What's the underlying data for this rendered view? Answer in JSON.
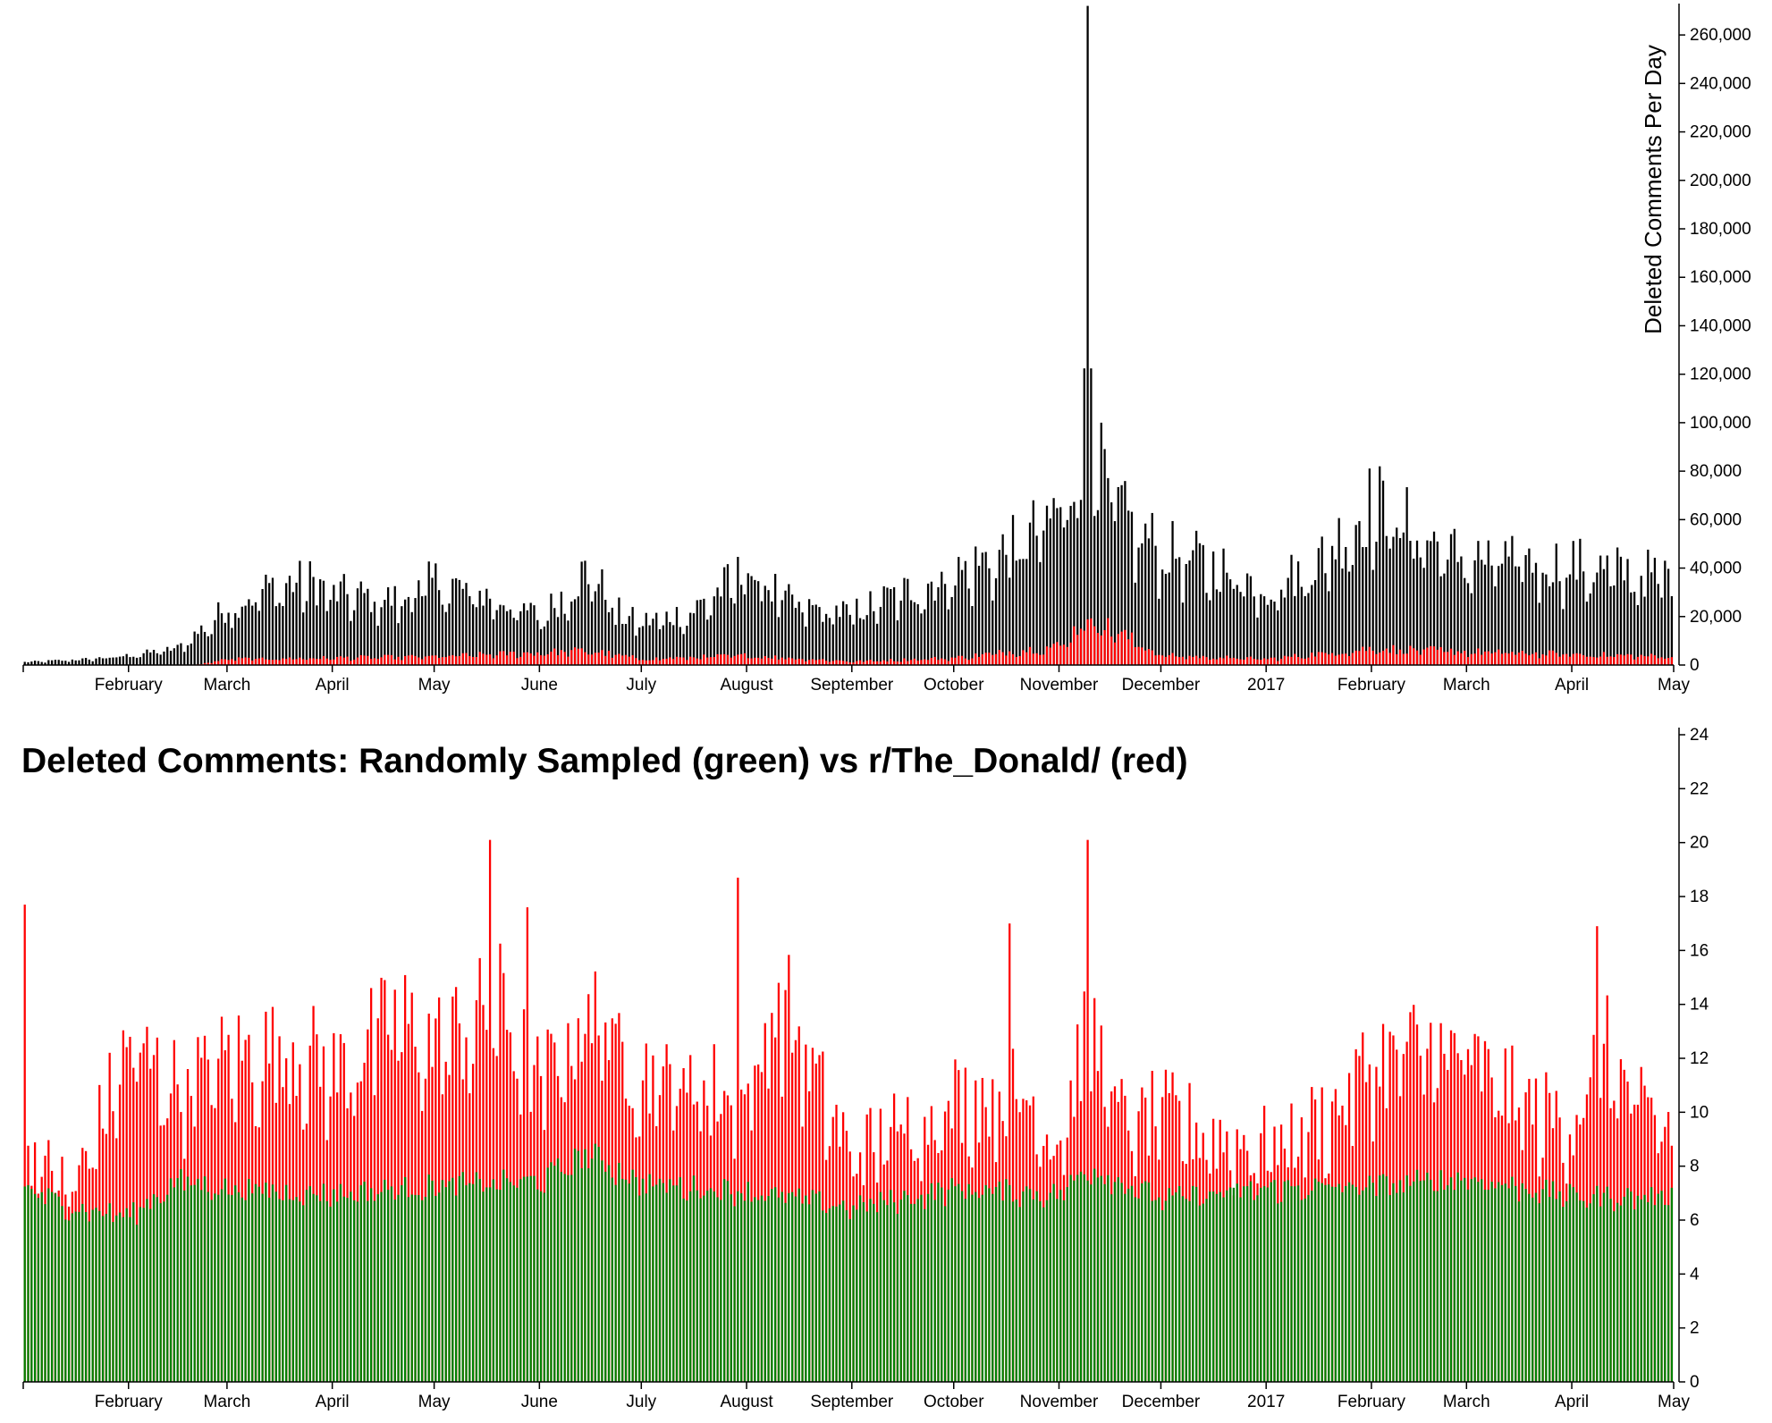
{
  "chart_data": [
    {
      "type": "bar",
      "title": "",
      "ylabel": "Deleted Comments Per Day",
      "ylim": [
        0,
        270000
      ],
      "y_ticks": [
        "0",
        "20,000",
        "40,000",
        "60,000",
        "80,000",
        "100,000",
        "120,000",
        "140,000",
        "160,000",
        "180,000",
        "200,000",
        "220,000",
        "240,000",
        "260,000"
      ],
      "y_tick_values": [
        0,
        20000,
        40000,
        60000,
        80000,
        100000,
        120000,
        140000,
        160000,
        180000,
        200000,
        220000,
        240000,
        260000
      ],
      "x_start": "2016-01-01",
      "x_end": "2017-05-01",
      "x_ticks": [
        "February",
        "March",
        "April",
        "May",
        "June",
        "July",
        "August",
        "September",
        "October",
        "November",
        "December",
        "2017",
        "February",
        "March",
        "April",
        "May"
      ],
      "x_tick_dates": [
        "2016-02-01",
        "2016-03-01",
        "2016-04-01",
        "2016-05-01",
        "2016-06-01",
        "2016-07-01",
        "2016-08-01",
        "2016-09-01",
        "2016-10-01",
        "2016-11-01",
        "2016-12-01",
        "2017-01-01",
        "2017-02-01",
        "2017-03-01",
        "2017-04-01",
        "2017-05-01"
      ],
      "series_note": "",
      "series": [
        {
          "color": "#000000",
          "monthly_typical_values": {
            "2016-01-01": 1200,
            "2016-01-20": 2500,
            "2016-02-01": 4000,
            "2016-02-15": 7000,
            "2016-02-25": 18000,
            "2016-03-01": 25000,
            "2016-03-15": 33000,
            "2016-03-25": 35000,
            "2016-04-01": 30000,
            "2016-04-20": 27000,
            "2016-05-01": 35000,
            "2016-05-20": 27000,
            "2016-06-01": 20000,
            "2016-06-15": 40000,
            "2016-06-25": 20000,
            "2016-07-01": 18000,
            "2016-07-15": 22000,
            "2016-08-01": 40000,
            "2016-08-15": 24000,
            "2016-09-01": 22000,
            "2016-09-15": 30000,
            "2016-10-01": 38000,
            "2016-10-20": 50000,
            "2016-11-01": 65000,
            "2016-11-09": 90000,
            "2016-11-20": 60000,
            "2016-12-01": 48000,
            "2016-12-20": 40000,
            "2017-01-01": 32000,
            "2017-01-15": 42000,
            "2017-02-01": 68000,
            "2017-02-20": 50000,
            "2017-03-01": 44000,
            "2017-03-20": 43000,
            "2017-04-01": 42000,
            "2017-04-20": 38000,
            "2017-05-01": 38000
          },
          "peak_date": "2016-11-09",
          "peak_value": 272000
        },
        {
          "color": "#ff0000",
          "monthly_typical_values": {
            "2016-01-01": 0,
            "2016-02-20": 0,
            "2016-03-01": 2500,
            "2016-05-01": 3500,
            "2016-06-15": 6000,
            "2016-07-01": 2500,
            "2016-08-01": 4000,
            "2016-09-01": 1500,
            "2016-10-01": 3000,
            "2016-11-01": 8000,
            "2016-11-09": 20000,
            "2016-12-01": 4000,
            "2017-01-01": 2500,
            "2017-02-01": 7000,
            "2017-03-01": 5500,
            "2017-04-01": 4500,
            "2017-05-01": 3500
          }
        }
      ]
    },
    {
      "type": "bar",
      "title": "Deleted Comments: Randomly Sampled (green) vs r/The_Donald/ (red)",
      "ylabel": "",
      "ylim": [
        0,
        24
      ],
      "y_ticks": [
        "0",
        "2",
        "4",
        "6",
        "8",
        "10",
        "12",
        "14",
        "16",
        "18",
        "20",
        "22",
        "24"
      ],
      "y_tick_values": [
        0,
        2,
        4,
        6,
        8,
        10,
        12,
        14,
        16,
        18,
        20,
        22,
        24
      ],
      "x_start": "2016-01-01",
      "x_end": "2017-05-01",
      "x_ticks": [
        "February",
        "March",
        "April",
        "May",
        "June",
        "July",
        "August",
        "September",
        "October",
        "November",
        "December",
        "2017",
        "February",
        "March",
        "April",
        "May"
      ],
      "x_tick_dates": [
        "2016-02-01",
        "2016-03-01",
        "2016-04-01",
        "2016-05-01",
        "2016-06-01",
        "2016-07-01",
        "2016-08-01",
        "2016-09-01",
        "2016-10-01",
        "2016-11-01",
        "2016-12-01",
        "2017-01-01",
        "2017-02-01",
        "2017-03-01",
        "2017-04-01",
        "2017-05-01"
      ],
      "series": [
        {
          "name": "Randomly Sampled",
          "color": "#008000",
          "monthly_typical_values": {
            "2016-01-01": 7.2,
            "2016-01-15": 6.5,
            "2016-02-01": 6.2,
            "2016-02-15": 7.5,
            "2016-03-01": 7.2,
            "2016-04-01": 7.0,
            "2016-05-01": 7.3,
            "2016-06-01": 7.5,
            "2016-06-15": 8.5,
            "2016-07-01": 7.4,
            "2016-08-01": 7.1,
            "2016-09-01": 6.5,
            "2016-10-01": 7.2,
            "2016-11-01": 7.0,
            "2016-11-09": 8.0,
            "2016-12-01": 6.8,
            "2017-01-01": 7.2,
            "2017-02-01": 7.3,
            "2017-03-01": 7.6,
            "2017-04-01": 6.9,
            "2017-05-01": 6.9
          }
        },
        {
          "name": "r/The_Donald/",
          "color": "#ff0000",
          "monthly_typical_values": {
            "2016-01-01": 9.0,
            "2016-01-15": 7.0,
            "2016-02-01": 12.5,
            "2016-02-15": 11.0,
            "2016-03-01": 12.0,
            "2016-03-20": 12.5,
            "2016-04-01": 11.5,
            "2016-04-20": 13.5,
            "2016-05-01": 12.5,
            "2016-05-20": 14.0,
            "2016-06-01": 11.0,
            "2016-06-15": 14.0,
            "2016-07-01": 11.5,
            "2016-07-20": 11.0,
            "2016-08-01": 10.5,
            "2016-08-10": 14.5,
            "2016-08-25": 10.0,
            "2016-09-01": 8.5,
            "2016-09-15": 9.5,
            "2016-10-01": 10.5,
            "2016-10-20": 11.0,
            "2016-11-01": 9.0,
            "2016-11-09": 13.5,
            "2016-11-20": 9.5,
            "2016-12-01": 10.0,
            "2016-12-20": 9.0,
            "2017-01-01": 8.8,
            "2017-01-20": 10.0,
            "2017-02-01": 12.0,
            "2017-02-20": 12.5,
            "2017-03-01": 12.0,
            "2017-03-20": 10.0,
            "2017-04-01": 9.8,
            "2017-04-10": 12.5,
            "2017-04-20": 10.0,
            "2017-05-01": 9.5
          },
          "spikes": [
            {
              "date": "2016-01-01",
              "value": 17.7
            },
            {
              "date": "2016-05-17",
              "value": 20.1
            },
            {
              "date": "2016-05-28",
              "value": 17.6
            },
            {
              "date": "2016-07-29",
              "value": 18.7
            },
            {
              "date": "2016-10-17",
              "value": 17.0
            },
            {
              "date": "2016-11-09",
              "value": 20.1
            },
            {
              "date": "2017-04-08",
              "value": 16.9
            }
          ]
        }
      ]
    }
  ]
}
